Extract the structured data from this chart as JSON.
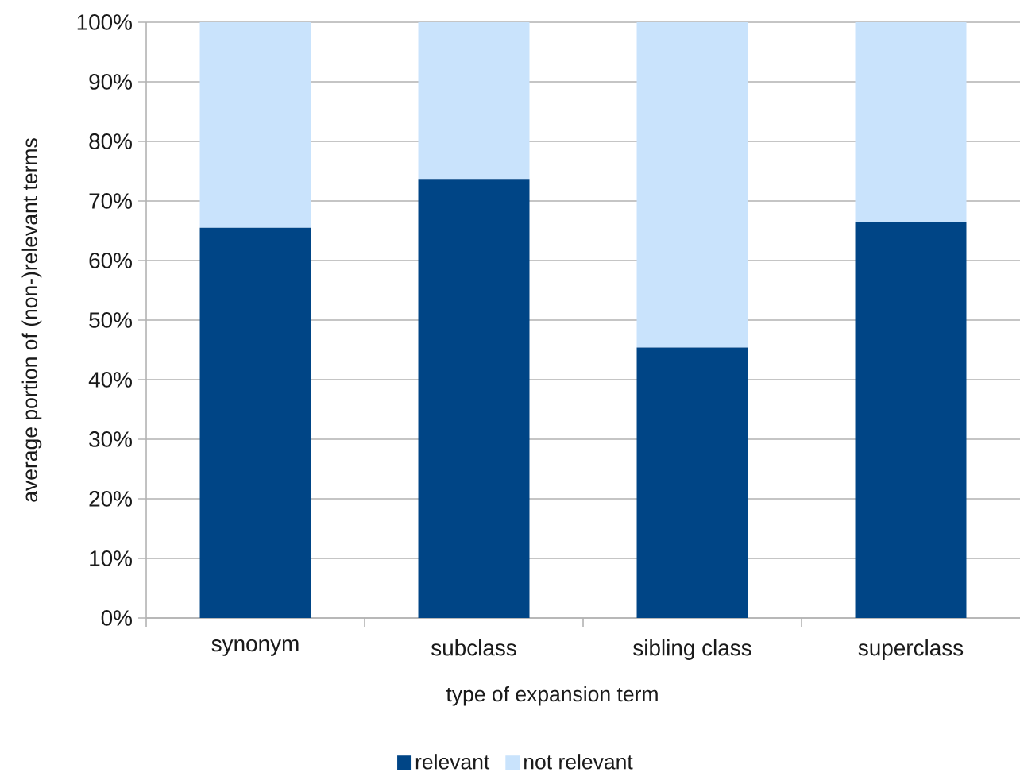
{
  "chart_data": {
    "type": "bar",
    "stacked": true,
    "xlabel": "type of expansion term",
    "ylabel": "average portion of (non-)relevant terms",
    "categories": [
      "synonym",
      "subclass",
      "sibling class",
      "superclass"
    ],
    "series": [
      {
        "name": "relevant",
        "color": "#004586",
        "values": [
          65.5,
          73.7,
          45.4,
          66.5
        ]
      },
      {
        "name": "not relevant",
        "color": "#c9e3fc",
        "values": [
          34.5,
          26.3,
          54.6,
          33.5
        ]
      }
    ],
    "ylim": [
      0,
      100
    ],
    "yticks": [
      {
        "value": 0,
        "label": "0%"
      },
      {
        "value": 10,
        "label": "10%"
      },
      {
        "value": 20,
        "label": "20%"
      },
      {
        "value": 30,
        "label": "30%"
      },
      {
        "value": 40,
        "label": "40%"
      },
      {
        "value": 50,
        "label": "50%"
      },
      {
        "value": 60,
        "label": "60%"
      },
      {
        "value": 70,
        "label": "70%"
      },
      {
        "value": 80,
        "label": "80%"
      },
      {
        "value": 90,
        "label": "90%"
      },
      {
        "value": 100,
        "label": "100%"
      }
    ],
    "grid": "y",
    "legend": "bottom"
  }
}
